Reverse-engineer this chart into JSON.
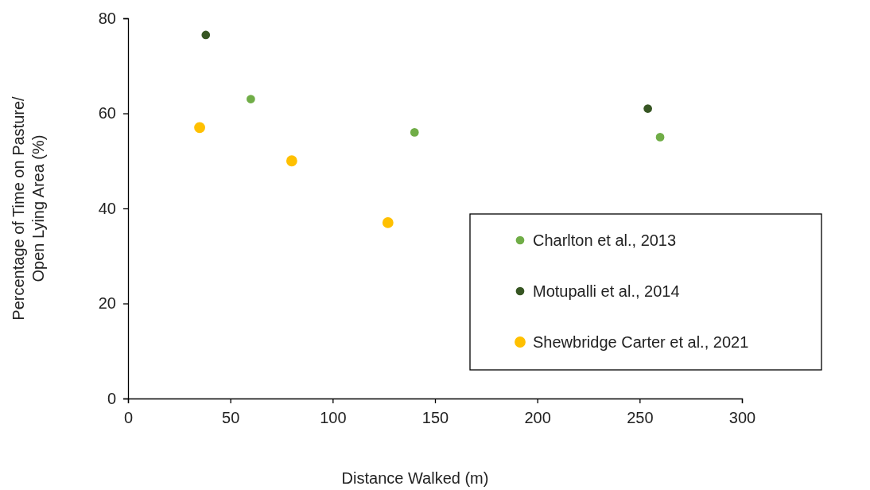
{
  "chart_data": {
    "type": "scatter",
    "xlabel": "Distance Walked (m)",
    "ylabel": "Percentage of Time on Pasture/\nOpen Lying Area (%)",
    "xlim": [
      0,
      300
    ],
    "xticks": [
      0,
      50,
      100,
      150,
      200,
      250,
      300
    ],
    "ylim": [
      0,
      80
    ],
    "yticks": [
      0,
      20,
      40,
      60,
      80
    ],
    "grid": false,
    "legend": "bottom right",
    "marker": "circle",
    "series": [
      {
        "name": "Charlton et al., 2013",
        "color": "#70ad47",
        "x": [
          60,
          140,
          260
        ],
        "values": [
          63,
          56,
          55
        ]
      },
      {
        "name": "Motupalli et al., 2014",
        "color": "#375623",
        "x": [
          38,
          254
        ],
        "values": [
          76.5,
          61
        ]
      },
      {
        "name": "Shewbridge Carter et al., 2021",
        "color": "#ffc000",
        "x": [
          35,
          80,
          127
        ],
        "values": [
          57,
          50,
          37
        ]
      }
    ]
  }
}
